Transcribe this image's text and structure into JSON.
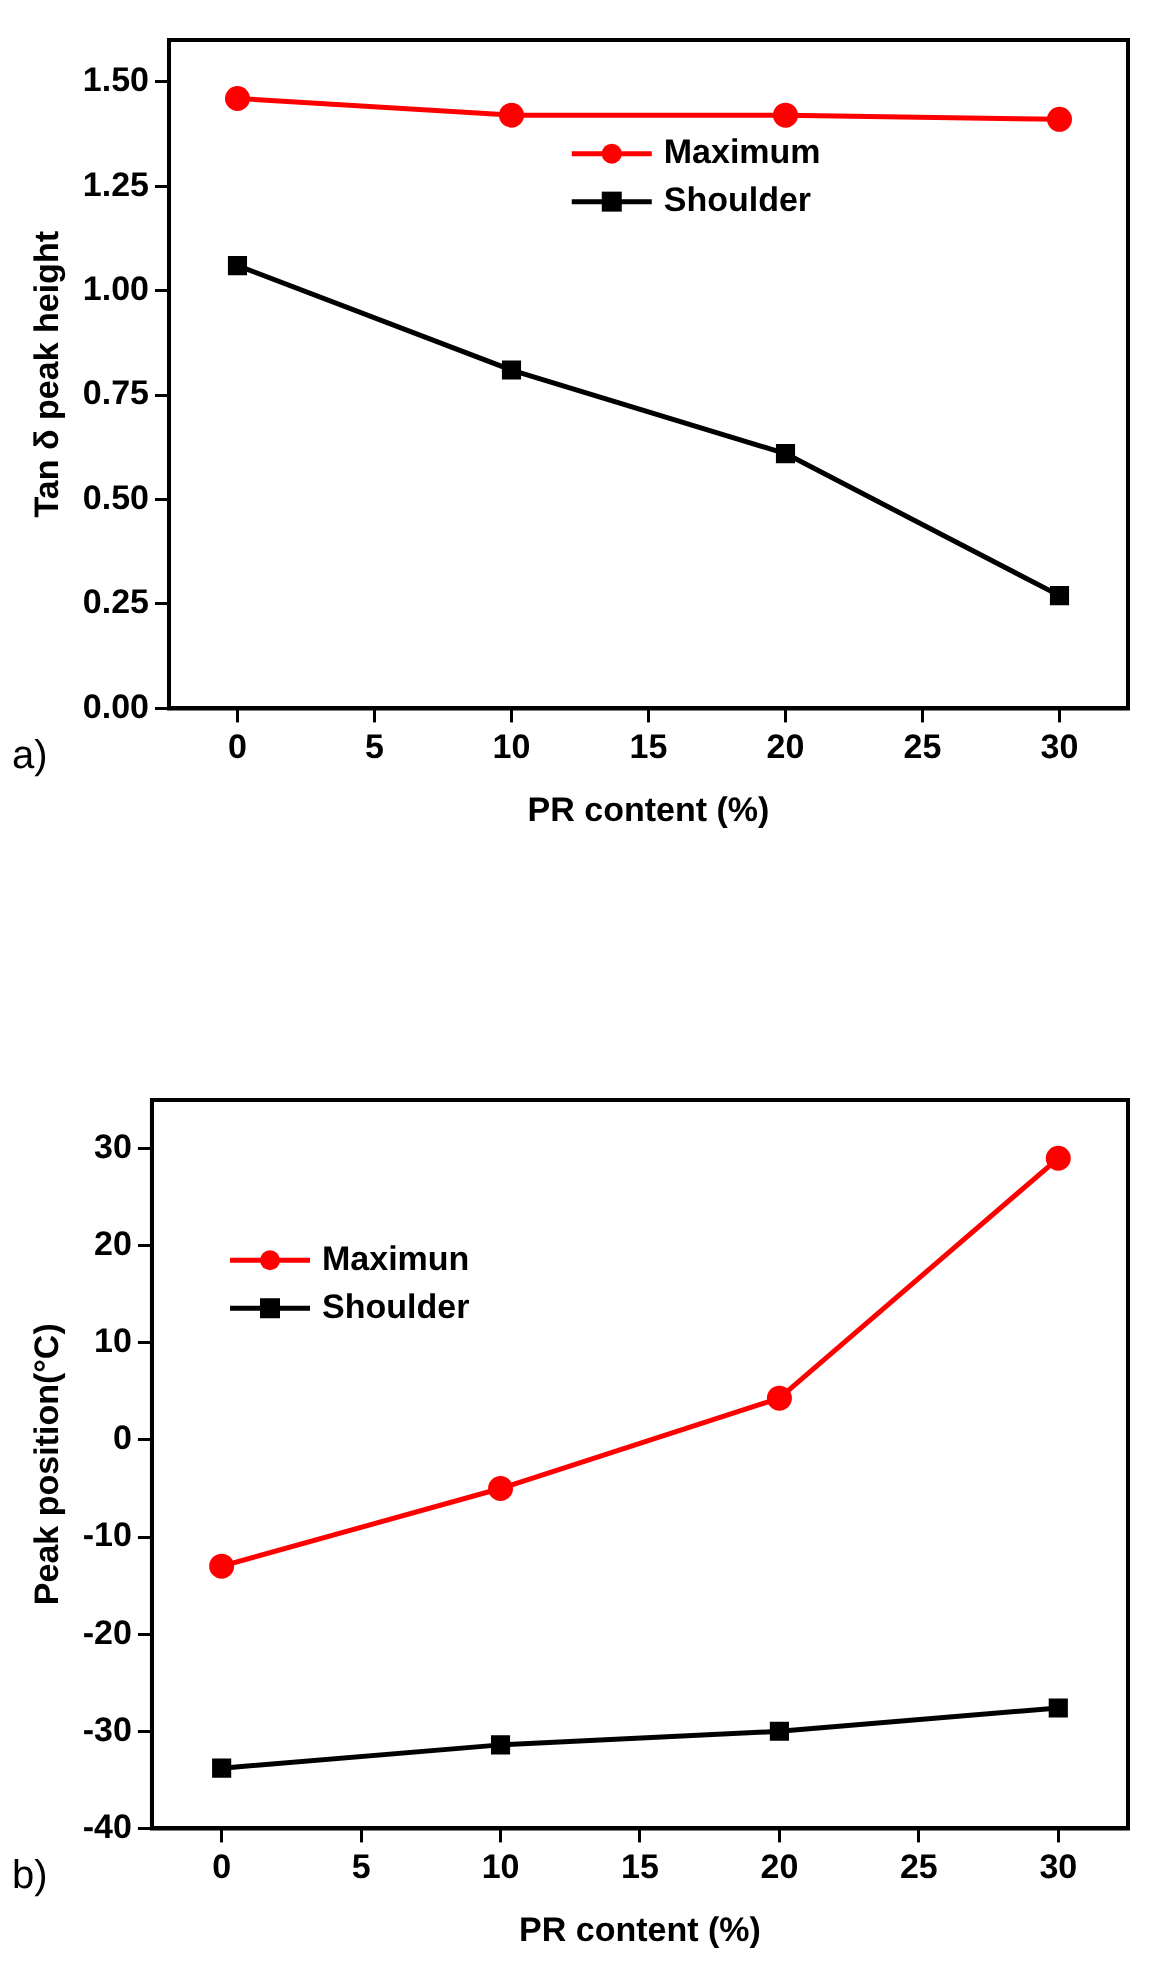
{
  "chart_data": [
    {
      "type": "line",
      "xlabel": "PR content (%)",
      "ylabel": "Tan δ peak height",
      "annotations": [
        "a)"
      ],
      "x": [
        0,
        10,
        20,
        30
      ],
      "xlim": [
        -2.5,
        32.5
      ],
      "xticks": [
        0,
        5,
        10,
        15,
        20,
        25,
        30
      ],
      "ylim": [
        0,
        1.6
      ],
      "yticks": [
        {
          "value": 0,
          "label": "0.00"
        },
        {
          "value": 0.25,
          "label": "0.25"
        },
        {
          "value": 0.5,
          "label": "0.50"
        },
        {
          "value": 0.75,
          "label": "0.75"
        },
        {
          "value": 1,
          "label": "1.00"
        },
        {
          "value": 1.25,
          "label": "1.25"
        },
        {
          "value": 1.5,
          "label": "1.50"
        }
      ],
      "grid": false,
      "legend": "top",
      "series": [
        {
          "name": "Maximum",
          "color": "#ff0000",
          "marker": "circle",
          "values": [
            1.46,
            1.42,
            1.42,
            1.41
          ]
        },
        {
          "name": "Shoulder",
          "color": "#000000",
          "marker": "square",
          "values": [
            1.06,
            0.81,
            0.61,
            0.27
          ]
        }
      ]
    },
    {
      "type": "line",
      "xlabel": "PR content (%)",
      "ylabel": "Peak position(°C)",
      "annotations": [
        "b)"
      ],
      "x": [
        0,
        10,
        20,
        30
      ],
      "xlim": [
        -2.5,
        32.5
      ],
      "xticks": [
        0,
        5,
        10,
        15,
        20,
        25,
        30
      ],
      "ylim": [
        -40,
        35
      ],
      "yticks": [
        -40,
        -30,
        -20,
        -10,
        0,
        10,
        20,
        30
      ],
      "grid": false,
      "legend": "top left",
      "series": [
        {
          "name": "Maximun",
          "color": "#ff0000",
          "marker": "circle",
          "values": [
            -13,
            -5,
            4.3,
            29
          ]
        },
        {
          "name": "Shoulder",
          "color": "#000000",
          "marker": "square",
          "values": [
            -33.8,
            -31.4,
            -30,
            -27.6
          ]
        }
      ]
    }
  ]
}
